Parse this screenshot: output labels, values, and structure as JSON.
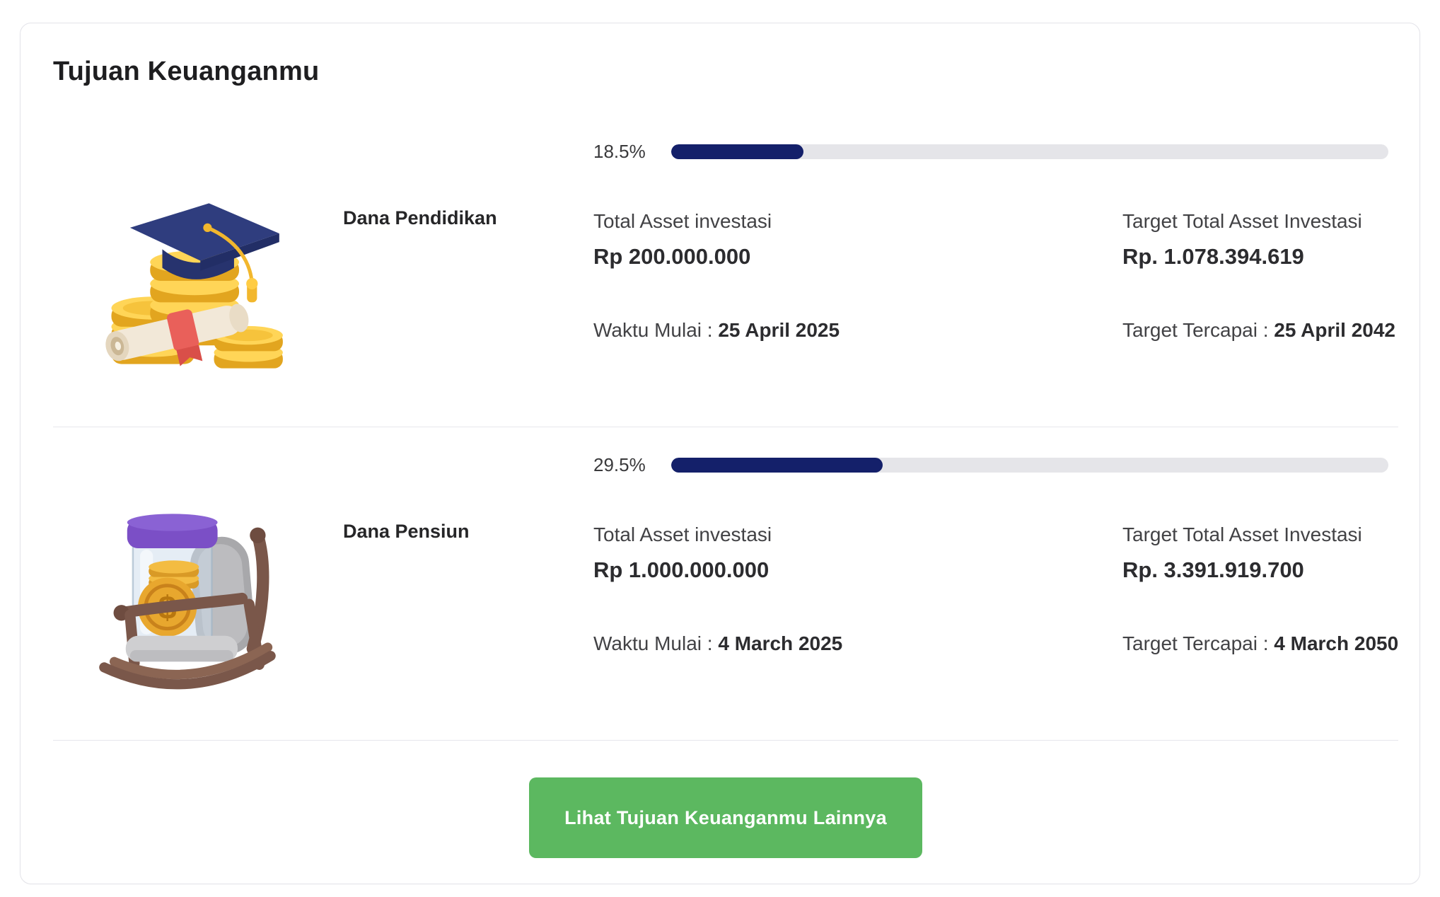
{
  "header": {
    "title": "Tujuan Keuanganmu"
  },
  "goals": [
    {
      "name": "Dana Pendidikan",
      "icon": "education-fund-icon",
      "progress_label": "18.5%",
      "progress_value": 18.5,
      "asset_label": "Total Asset investasi",
      "asset_value": "Rp 200.000.000",
      "start_label": "Waktu Mulai : ",
      "start_value": "25 April 2025",
      "target_label": "Target Total Asset Investasi",
      "target_value": "Rp. 1.078.394.619",
      "achieved_label": "Target Tercapai : ",
      "achieved_value": "25 April 2042"
    },
    {
      "name": "Dana Pensiun",
      "icon": "pension-fund-icon",
      "progress_label": "29.5%",
      "progress_value": 29.5,
      "asset_label": "Total Asset investasi",
      "asset_value": "Rp 1.000.000.000",
      "start_label": "Waktu Mulai : ",
      "start_value": "4 March 2025",
      "target_label": "Target Total Asset Investasi",
      "target_value": "Rp. 3.391.919.700",
      "achieved_label": "Target Tercapai : ",
      "achieved_value": "4 March 2050"
    }
  ],
  "footer": {
    "button_label": "Lihat Tujuan Keuanganmu Lainnya"
  },
  "icons": {
    "coin_symbol": "$"
  },
  "colors": {
    "progress_fill": "#14206a",
    "progress_track": "#e5e5e9",
    "button_green": "#5cb860",
    "card_border": "#e3e3e9",
    "title_text": "#1e1e20"
  }
}
